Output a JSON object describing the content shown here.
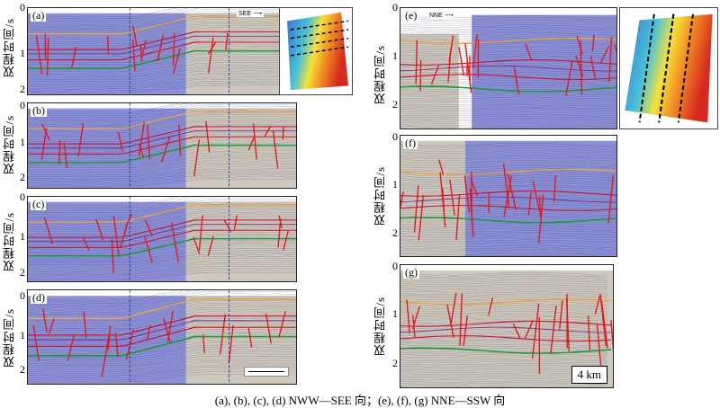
{
  "y_axis_label": "双程时间/s",
  "tick_values": [
    "0",
    "1",
    "2"
  ],
  "panels_left": [
    {
      "label": "(a)",
      "direction": "SEE"
    },
    {
      "label": "(b)"
    },
    {
      "label": "(c)"
    },
    {
      "label": "(d)"
    }
  ],
  "panels_right": [
    {
      "label": "(e)",
      "direction": "NNE"
    },
    {
      "label": "(f)"
    },
    {
      "label": "(g)"
    }
  ],
  "scale_bar": "4 km",
  "caption": "(a), (b), (c), (d) NWW—SEE 向；(e), (f), (g) NNE—SSW 向",
  "colors": {
    "seismic_blue": "#8b90d8",
    "seismic_gray": "#cfc9bd",
    "fault": "#e01b1b",
    "horizon_orange": "#f0a040",
    "horizon_red": "#c8102e",
    "horizon_green": "#1a9a3a",
    "section_divider": "#1a237e"
  }
}
